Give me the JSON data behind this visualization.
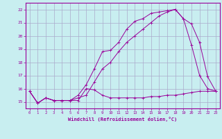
{
  "background_color": "#c8eef0",
  "grid_color": "#aaaacc",
  "line_color": "#990099",
  "xlim": [
    -0.5,
    23.5
  ],
  "ylim": [
    14.5,
    22.5
  ],
  "xlabel": "Windchill (Refroidissement éolien,°C)",
  "yticks": [
    15,
    16,
    17,
    18,
    19,
    20,
    21,
    22
  ],
  "xticks": [
    0,
    1,
    2,
    3,
    4,
    5,
    6,
    7,
    8,
    9,
    10,
    11,
    12,
    13,
    14,
    15,
    16,
    17,
    18,
    19,
    20,
    21,
    22,
    23
  ],
  "line1_x": [
    0,
    1,
    2,
    3,
    4,
    5,
    6,
    7,
    8,
    9,
    10,
    11,
    12,
    13,
    14,
    15,
    16,
    17,
    18,
    19,
    20,
    21,
    22,
    23
  ],
  "line1_y": [
    15.8,
    14.9,
    15.3,
    15.1,
    15.1,
    15.1,
    15.1,
    16.0,
    15.9,
    15.5,
    15.3,
    15.3,
    15.3,
    15.3,
    15.3,
    15.4,
    15.4,
    15.5,
    15.5,
    15.6,
    15.7,
    15.8,
    15.8,
    15.8
  ],
  "line2_x": [
    0,
    1,
    2,
    3,
    4,
    5,
    6,
    7,
    8,
    9,
    10,
    11,
    12,
    13,
    14,
    15,
    16,
    17,
    18,
    19,
    20,
    21,
    22,
    23
  ],
  "line2_y": [
    15.8,
    14.9,
    15.3,
    15.1,
    15.1,
    15.1,
    15.5,
    16.3,
    17.5,
    18.8,
    18.9,
    19.5,
    20.5,
    21.1,
    21.3,
    21.7,
    21.8,
    21.9,
    22.0,
    21.3,
    20.9,
    19.5,
    16.9,
    15.8
  ],
  "line3_x": [
    0,
    1,
    2,
    3,
    4,
    5,
    6,
    7,
    8,
    9,
    10,
    11,
    12,
    13,
    14,
    15,
    16,
    17,
    18,
    19,
    20,
    21,
    22,
    23
  ],
  "line3_y": [
    15.8,
    14.9,
    15.3,
    15.1,
    15.1,
    15.1,
    15.3,
    15.5,
    16.5,
    17.5,
    18.0,
    18.8,
    19.5,
    20.0,
    20.5,
    21.0,
    21.5,
    21.8,
    22.0,
    21.3,
    19.3,
    17.0,
    16.0,
    15.8
  ]
}
